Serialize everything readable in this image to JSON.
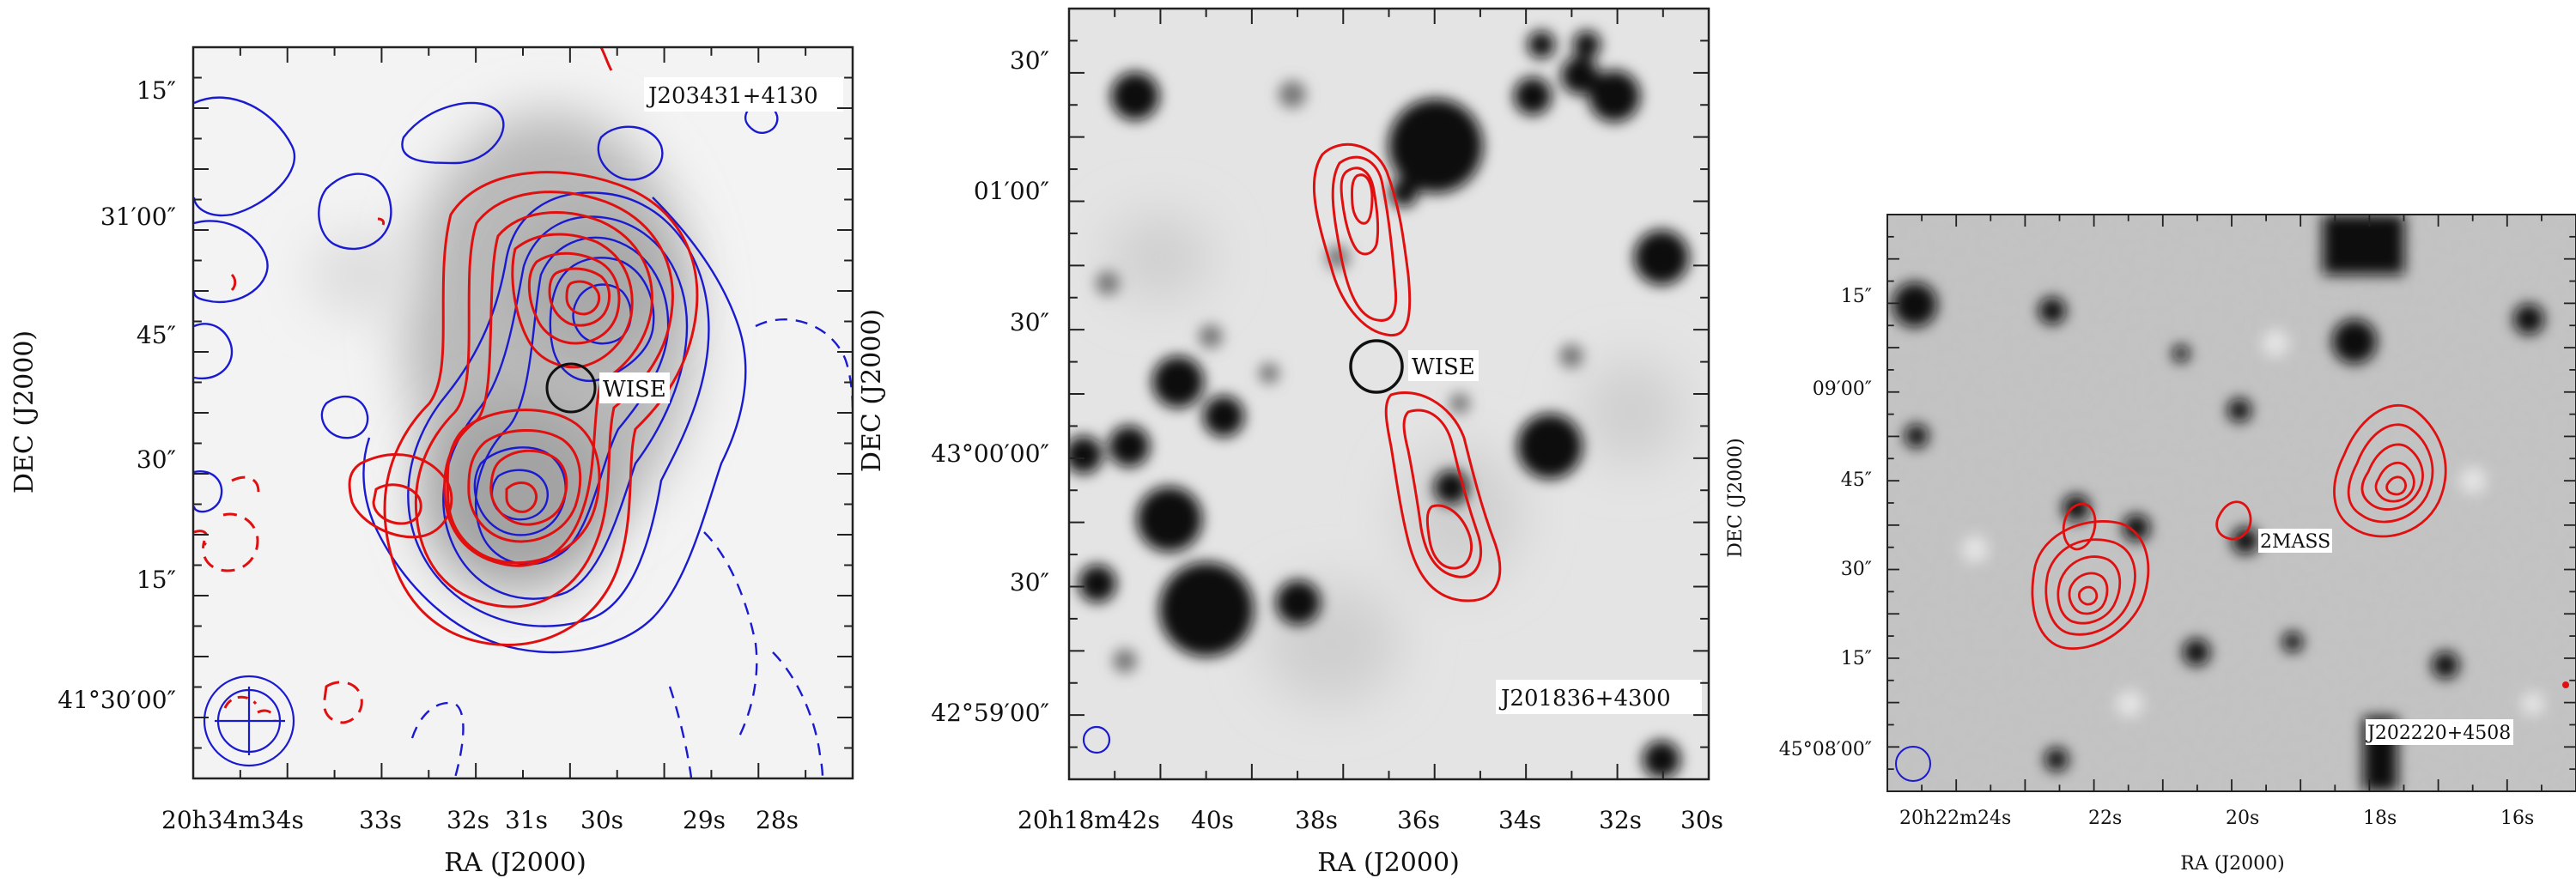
{
  "panels": [
    {
      "source": "J203431+4130",
      "marker": "WISE",
      "ra_ticks": [
        "20h34m34s",
        "33s",
        "32s",
        "31s",
        "30s",
        "29s",
        "28s"
      ],
      "dec_ticks": [
        "15″",
        "31′00″",
        "45″",
        "30″",
        "15″",
        "41°30′00″"
      ],
      "xlabel": "RA (J2000)",
      "ylabel": "DEC (J2000)"
    },
    {
      "source": "J201836+4300",
      "marker": "WISE",
      "ra_ticks": [
        "20h18m42s",
        "40s",
        "38s",
        "36s",
        "34s",
        "32s",
        "30s"
      ],
      "dec_ticks": [
        "30″",
        "01′00″",
        "30″",
        "43°00′00″",
        "30″",
        "42°59′00″"
      ],
      "xlabel": "RA (J2000)",
      "ylabel": "DEC (J2000)"
    },
    {
      "source": "J202220+4508",
      "marker": "2MASS",
      "ra_ticks": [
        "20h22m24s",
        "22s",
        "20s",
        "18s",
        "16s"
      ],
      "dec_ticks": [
        "15″",
        "09′00″",
        "45″",
        "30″",
        "15″",
        "45°08′00″"
      ],
      "xlabel": "RA (J2000)",
      "ylabel": "DEC (J2000)"
    }
  ],
  "colors": {
    "contour_red": "#e01010",
    "contour_blue": "#1a1ad0",
    "frame": "#222222"
  }
}
